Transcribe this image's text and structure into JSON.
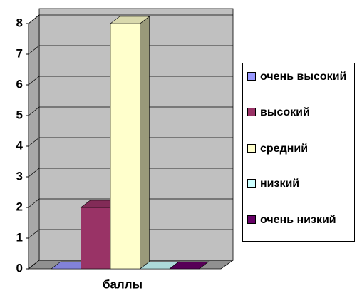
{
  "chart_data": {
    "type": "bar3d",
    "categories": [
      "баллы"
    ],
    "series": [
      {
        "name": "очень высокий",
        "color": "#9999ff",
        "values": [
          0
        ]
      },
      {
        "name": "высокий",
        "color": "#993366",
        "values": [
          2
        ]
      },
      {
        "name": "средний",
        "color": "#ffffcc",
        "values": [
          8
        ]
      },
      {
        "name": "низкий",
        "color": "#ccffff",
        "values": [
          0
        ]
      },
      {
        "name": "очень низкий",
        "color": "#660066",
        "values": [
          0
        ]
      }
    ],
    "ylim": [
      0,
      8
    ],
    "yticks": [
      0,
      1,
      2,
      3,
      4,
      5,
      6,
      7,
      8
    ],
    "grid": true,
    "legend": "right"
  }
}
